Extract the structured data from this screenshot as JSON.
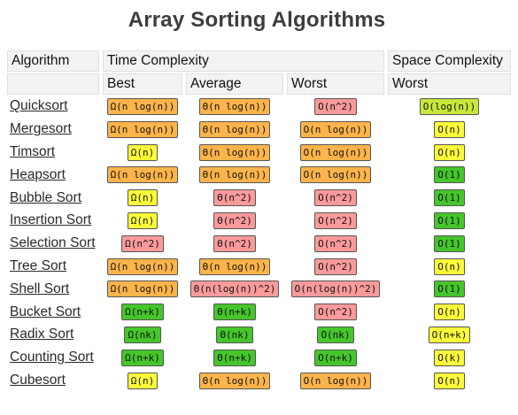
{
  "title": "Array Sorting Algorithms",
  "header": {
    "algorithm": "Algorithm",
    "time_complexity": "Time Complexity",
    "space_complexity": "Space Complexity",
    "best": "Best",
    "average": "Average",
    "worst": "Worst",
    "space_worst": "Worst"
  },
  "colors": {
    "orange": "#fdb44b",
    "red": "#fb9a9a",
    "yellow": "#fbfb3a",
    "yellowgreen": "#c8e83a",
    "green": "#45c62b"
  },
  "rows": [
    {
      "name": "Quicksort",
      "best": {
        "text": "Ω(n log(n))",
        "color": "orange"
      },
      "average": {
        "text": "Θ(n log(n))",
        "color": "orange"
      },
      "worst": {
        "text": "O(n^2)",
        "color": "red"
      },
      "space": {
        "text": "O(log(n))",
        "color": "yellowgreen"
      }
    },
    {
      "name": "Mergesort",
      "best": {
        "text": "Ω(n log(n))",
        "color": "orange"
      },
      "average": {
        "text": "Θ(n log(n))",
        "color": "orange"
      },
      "worst": {
        "text": "O(n log(n))",
        "color": "orange"
      },
      "space": {
        "text": "O(n)",
        "color": "yellow"
      }
    },
    {
      "name": "Timsort",
      "best": {
        "text": "Ω(n)",
        "color": "yellow"
      },
      "average": {
        "text": "Θ(n log(n))",
        "color": "orange"
      },
      "worst": {
        "text": "O(n log(n))",
        "color": "orange"
      },
      "space": {
        "text": "O(n)",
        "color": "yellow"
      }
    },
    {
      "name": "Heapsort",
      "best": {
        "text": "Ω(n log(n))",
        "color": "orange"
      },
      "average": {
        "text": "Θ(n log(n))",
        "color": "orange"
      },
      "worst": {
        "text": "O(n log(n))",
        "color": "orange"
      },
      "space": {
        "text": "O(1)",
        "color": "green"
      }
    },
    {
      "name": "Bubble Sort",
      "best": {
        "text": "Ω(n)",
        "color": "yellow"
      },
      "average": {
        "text": "Θ(n^2)",
        "color": "red"
      },
      "worst": {
        "text": "O(n^2)",
        "color": "red"
      },
      "space": {
        "text": "O(1)",
        "color": "green"
      }
    },
    {
      "name": "Insertion Sort",
      "best": {
        "text": "Ω(n)",
        "color": "yellow"
      },
      "average": {
        "text": "Θ(n^2)",
        "color": "red"
      },
      "worst": {
        "text": "O(n^2)",
        "color": "red"
      },
      "space": {
        "text": "O(1)",
        "color": "green"
      }
    },
    {
      "name": "Selection Sort",
      "best": {
        "text": "Ω(n^2)",
        "color": "red"
      },
      "average": {
        "text": "Θ(n^2)",
        "color": "red"
      },
      "worst": {
        "text": "O(n^2)",
        "color": "red"
      },
      "space": {
        "text": "O(1)",
        "color": "green"
      }
    },
    {
      "name": "Tree Sort",
      "best": {
        "text": "Ω(n log(n))",
        "color": "orange"
      },
      "average": {
        "text": "Θ(n log(n))",
        "color": "orange"
      },
      "worst": {
        "text": "O(n^2)",
        "color": "red"
      },
      "space": {
        "text": "O(n)",
        "color": "yellow"
      }
    },
    {
      "name": "Shell Sort",
      "best": {
        "text": "Ω(n log(n))",
        "color": "orange"
      },
      "average": {
        "text": "Θ(n(log(n))^2)",
        "color": "red"
      },
      "worst": {
        "text": "O(n(log(n))^2)",
        "color": "red"
      },
      "space": {
        "text": "O(1)",
        "color": "green"
      }
    },
    {
      "name": "Bucket Sort",
      "best": {
        "text": "Ω(n+k)",
        "color": "green"
      },
      "average": {
        "text": "Θ(n+k)",
        "color": "green"
      },
      "worst": {
        "text": "O(n^2)",
        "color": "red"
      },
      "space": {
        "text": "O(n)",
        "color": "yellow"
      }
    },
    {
      "name": "Radix Sort",
      "best": {
        "text": "Ω(nk)",
        "color": "green"
      },
      "average": {
        "text": "Θ(nk)",
        "color": "green"
      },
      "worst": {
        "text": "O(nk)",
        "color": "green"
      },
      "space": {
        "text": "O(n+k)",
        "color": "yellow"
      }
    },
    {
      "name": "Counting Sort",
      "best": {
        "text": "Ω(n+k)",
        "color": "green"
      },
      "average": {
        "text": "Θ(n+k)",
        "color": "green"
      },
      "worst": {
        "text": "O(n+k)",
        "color": "green"
      },
      "space": {
        "text": "O(k)",
        "color": "yellow"
      }
    },
    {
      "name": "Cubesort",
      "best": {
        "text": "Ω(n)",
        "color": "yellow"
      },
      "average": {
        "text": "Θ(n log(n))",
        "color": "orange"
      },
      "worst": {
        "text": "O(n log(n))",
        "color": "orange"
      },
      "space": {
        "text": "O(n)",
        "color": "yellow"
      }
    }
  ]
}
